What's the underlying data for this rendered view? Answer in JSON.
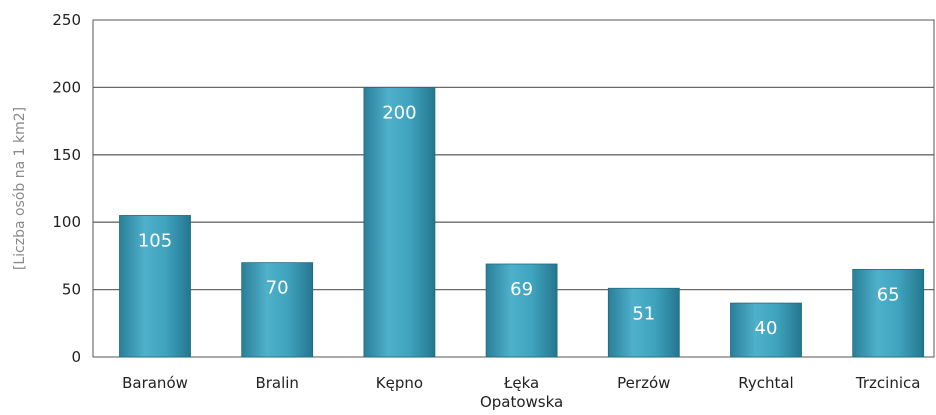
{
  "chart_data": {
    "type": "bar",
    "categories": [
      "Baranów",
      "Bralin",
      "Kępno",
      "Łęka Opatowska",
      "Perzów",
      "Rychtal",
      "Trzcinica"
    ],
    "series": [
      {
        "values": [
          105,
          70,
          200,
          69,
          51,
          40,
          65
        ]
      }
    ],
    "data_labels": [
      "105",
      "70",
      "200",
      "69",
      "51",
      "40",
      "65"
    ],
    "title": "",
    "xlabel": "",
    "ylabel": "[Liczba osób na 1 km2]",
    "ylim": [
      0,
      250
    ],
    "yticks": [
      0,
      50,
      100,
      150,
      200,
      250
    ],
    "grid": true,
    "bar_color": "#3a97b2"
  }
}
